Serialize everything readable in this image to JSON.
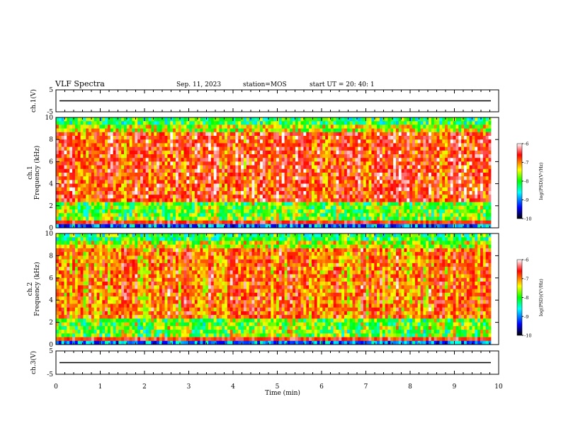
{
  "header": {
    "title": "VLF Spectra",
    "date": "Sep. 11, 2023",
    "station": "station=MOS",
    "start": "start  UT  =   20: 40: 1"
  },
  "colorbar": {
    "label": "log(PSD)(V²/Hz)",
    "ticks": [
      "-6",
      "-7",
      "-8",
      "-9",
      "-10"
    ],
    "colors": [
      "#000000",
      "#0000ff",
      "#00ffff",
      "#00ff00",
      "#ffff00",
      "#ff0000",
      "#ffffff"
    ]
  },
  "chart_data": [
    {
      "type": "line",
      "name": "ch1-voltage",
      "ylabel": "ch.1(V)",
      "ylim": [
        -5,
        5
      ],
      "yticks": [
        "5",
        "-5"
      ],
      "xlim": [
        0,
        10
      ],
      "y_level": 0
    },
    {
      "type": "heatmap",
      "name": "ch1-spectrogram",
      "ylabel": "ch.1\nFrequency (kHz)",
      "ylim": [
        0,
        10
      ],
      "yticks": [
        "0",
        "2",
        "4",
        "6",
        "8",
        "10"
      ],
      "xlim": [
        0,
        10
      ],
      "data_extent_min": 9.83,
      "zlim": [
        -10,
        -6
      ]
    },
    {
      "type": "heatmap",
      "name": "ch2-spectrogram",
      "ylabel": "ch.2\nFrequency (kHz)",
      "ylim": [
        0,
        10
      ],
      "yticks": [
        "0",
        "2",
        "4",
        "6",
        "8",
        "10"
      ],
      "xlim": [
        0,
        10
      ],
      "data_extent_min": 9.83,
      "zlim": [
        -10,
        -6
      ]
    },
    {
      "type": "line",
      "name": "ch3-voltage",
      "ylabel": "ch.3(V)",
      "ylim": [
        -5,
        5
      ],
      "yticks": [
        "5",
        "-5"
      ],
      "xlim": [
        0,
        10
      ],
      "y_level": 0
    }
  ],
  "xaxis": {
    "label": "Time  (min)",
    "ticks": [
      "0",
      "1",
      "2",
      "3",
      "4",
      "5",
      "6",
      "7",
      "8",
      "9",
      "10"
    ]
  }
}
